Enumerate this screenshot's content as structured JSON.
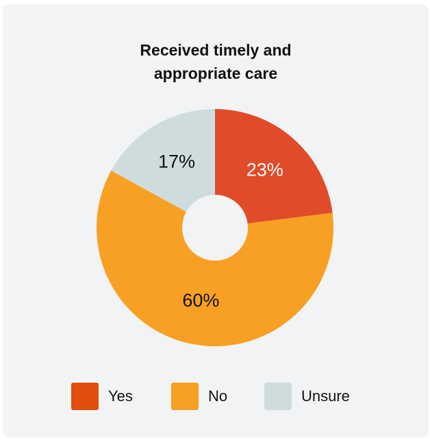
{
  "chart_data": {
    "type": "pie",
    "title_lines": [
      "Received timely and",
      "appropriate care"
    ],
    "slices": [
      {
        "label": "Yes",
        "value": 23,
        "display": "23%",
        "color": "#e04b2a",
        "label_color": "#ffffff"
      },
      {
        "label": "No",
        "value": 60,
        "display": "60%",
        "color": "#f8a023",
        "label_color": "#111111"
      },
      {
        "label": "Unsure",
        "value": 17,
        "display": "17%",
        "color": "#cfdcdd",
        "label_color": "#111111"
      }
    ],
    "legend": [
      {
        "label": "Yes",
        "color": "#e14d0c"
      },
      {
        "label": "No",
        "color": "#f8a023"
      },
      {
        "label": "Unsure",
        "color": "#cfdcdd"
      }
    ],
    "legend_position": "bottom",
    "donut_hole_color": "#f1f3f4"
  }
}
